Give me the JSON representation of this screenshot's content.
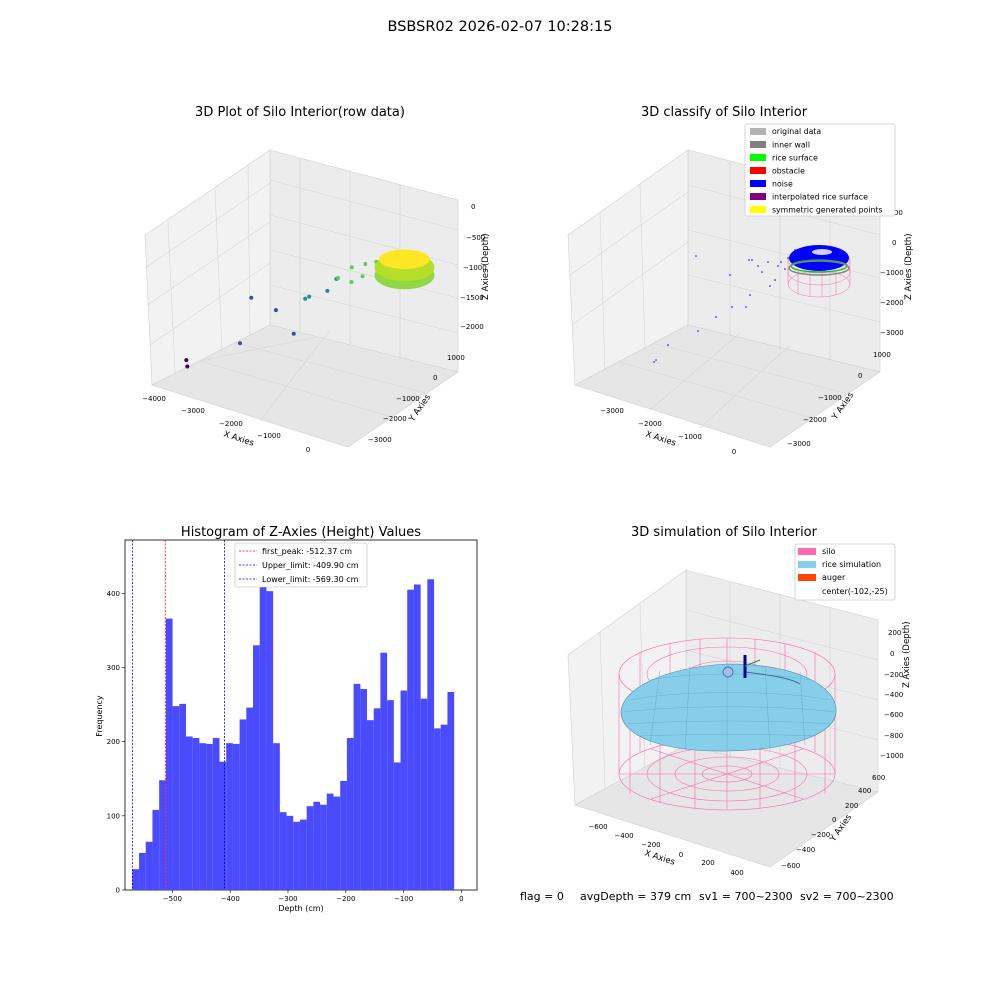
{
  "figure": {
    "suptitle": "BSBSR02 2026-02-07 10:28:15",
    "status_line": {
      "flag": "flag = 0",
      "avg_depth": "avgDepth = 379 cm",
      "sv1": "sv1 = 700~2300",
      "sv2": "sv2 = 700~2300"
    }
  },
  "colors": {
    "histogram_bar": "#4a4aff",
    "first_peak_line": "#ff0000",
    "limit_line": "#0000cc",
    "original_data": "#b3b3b3",
    "inner_wall": "#808080",
    "rice_surface": "#00ff00",
    "obstacle": "#ff0000",
    "noise": "#0000ff",
    "interpolated_rice_surface": "#800080",
    "symmetric_generated_points": "#ffff00",
    "silo": "#ff69b4",
    "rice_simulation": "#87ceeb",
    "auger": "#ff4500"
  },
  "chart_data": [
    {
      "type": "scatter3d",
      "title": "3D Plot of Silo Interior(row data)",
      "xlabel": "X Axies",
      "ylabel": "Y Axies",
      "zlabel": "Z Axies (Depth)",
      "x_ticks": [
        "−4000",
        "−3000",
        "−2000",
        "−1000",
        "0"
      ],
      "y_ticks": [
        "1000",
        "0",
        "−1000",
        "−2000",
        "−3000"
      ],
      "z_ticks": [
        "0",
        "−500",
        "−1000",
        "−1500",
        "−2000"
      ],
      "xlim": [
        -4000,
        500
      ],
      "ylim": [
        -3500,
        1500
      ],
      "zlim": [
        -2300,
        100
      ],
      "colormap": "viridis",
      "points": [
        {
          "x": -3700,
          "y": -2600,
          "z": -2050
        },
        {
          "x": -3650,
          "y": -2650,
          "z": -2120
        },
        {
          "x": -2900,
          "y": -1800,
          "z": -1800
        },
        {
          "x": -2400,
          "y": -1200,
          "z": -1350
        },
        {
          "x": -2100,
          "y": -1000,
          "z": -1650
        },
        {
          "x": -2000,
          "y": -700,
          "z": -1200
        },
        {
          "x": -1800,
          "y": -900,
          "z": -1100
        },
        {
          "x": -1600,
          "y": -500,
          "z": -1050
        },
        {
          "x": -1500,
          "y": -300,
          "z": -900
        },
        {
          "x": -1300,
          "y": -600,
          "z": -800
        },
        {
          "x": -1200,
          "y": -200,
          "z": -700
        },
        {
          "x": -1100,
          "y": -400,
          "z": -850
        },
        {
          "x": -1000,
          "y": 0,
          "z": -650
        },
        {
          "x": -900,
          "y": -300,
          "z": -750
        },
        {
          "x": -800,
          "y": 100,
          "z": -600
        },
        {
          "x": -3400,
          "y": -400,
          "z": -1500
        }
      ],
      "dense_cluster": {
        "center_x": -100,
        "center_y": 0,
        "radius": 500,
        "z_top": -450,
        "z_bottom": -600
      }
    },
    {
      "type": "scatter3d",
      "title": "3D classify of Silo Interior",
      "xlabel": "X Axies",
      "ylabel": "Y Axies",
      "zlabel": "Z Axies (Depth)",
      "x_ticks": [
        "−3000",
        "−2000",
        "−1000",
        "0"
      ],
      "y_ticks": [
        "1000",
        "0",
        "−1000",
        "−2000",
        "−3000"
      ],
      "z_ticks": [
        "1000",
        "0",
        "−1000",
        "−2000",
        "−3000"
      ],
      "legend": [
        {
          "label": "original data",
          "color_key": "original_data"
        },
        {
          "label": "inner wall",
          "color_key": "inner_wall"
        },
        {
          "label": "rice surface",
          "color_key": "rice_surface"
        },
        {
          "label": "obstacle",
          "color_key": "obstacle"
        },
        {
          "label": "noise",
          "color_key": "noise"
        },
        {
          "label": "interpolated rice surface",
          "color_key": "interpolated_rice_surface"
        },
        {
          "label": "symmetric generated points",
          "color_key": "symmetric_generated_points"
        }
      ],
      "legend_placement": "top-right"
    },
    {
      "type": "bar",
      "title": "Histogram of Z-Axies (Height) Values",
      "xlabel": "Depth (cm)",
      "ylabel": "Frequency",
      "xlim": [
        -582,
        27
      ],
      "ylim": [
        0,
        472
      ],
      "x_ticks": [
        -500,
        -400,
        -300,
        -200,
        -100,
        0
      ],
      "y_ticks": [
        0,
        100,
        200,
        300,
        400
      ],
      "bin_start": -569.3,
      "bin_width": 11.6,
      "values": [
        28,
        50,
        65,
        108,
        148,
        366,
        248,
        251,
        207,
        205,
        198,
        197,
        205,
        173,
        198,
        197,
        230,
        246,
        330,
        450,
        403,
        198,
        105,
        100,
        92,
        95,
        113,
        119,
        115,
        130,
        126,
        147,
        205,
        278,
        271,
        229,
        245,
        320,
        256,
        172,
        269,
        405,
        412,
        258,
        419,
        218,
        223,
        267
      ],
      "vlines": [
        {
          "label": "first_peak: -512.37 cm",
          "x": -512.37,
          "color_key": "first_peak_line"
        },
        {
          "label": "Upper_limit: -409.90 cm",
          "x": -409.9,
          "color_key": "limit_line"
        },
        {
          "label": "Lower_limit: -569.30 cm",
          "x": -569.3,
          "color_key": "limit_line"
        }
      ],
      "legend_placement": "top-center"
    },
    {
      "type": "wireframe3d",
      "title": "3D simulation of Silo Interior",
      "xlabel": "X Axies",
      "ylabel": "Y Axies",
      "zlabel": "Z Axies (Depth)",
      "x_ticks": [
        "−600",
        "−400",
        "−200",
        "0",
        "200",
        "400"
      ],
      "y_ticks": [
        "600",
        "400",
        "200",
        "0",
        "−200",
        "−400",
        "−600"
      ],
      "z_ticks": [
        "200",
        "0",
        "−200",
        "−400",
        "−600",
        "−800",
        "−1000"
      ],
      "legend": [
        {
          "label": "silo",
          "color_key": "silo"
        },
        {
          "label": "rice simulation",
          "color_key": "rice_simulation"
        },
        {
          "label": "auger",
          "color_key": "auger"
        },
        {
          "label": "center(-102,-25)",
          "color_key": ""
        }
      ],
      "legend_placement": "top-right"
    }
  ]
}
